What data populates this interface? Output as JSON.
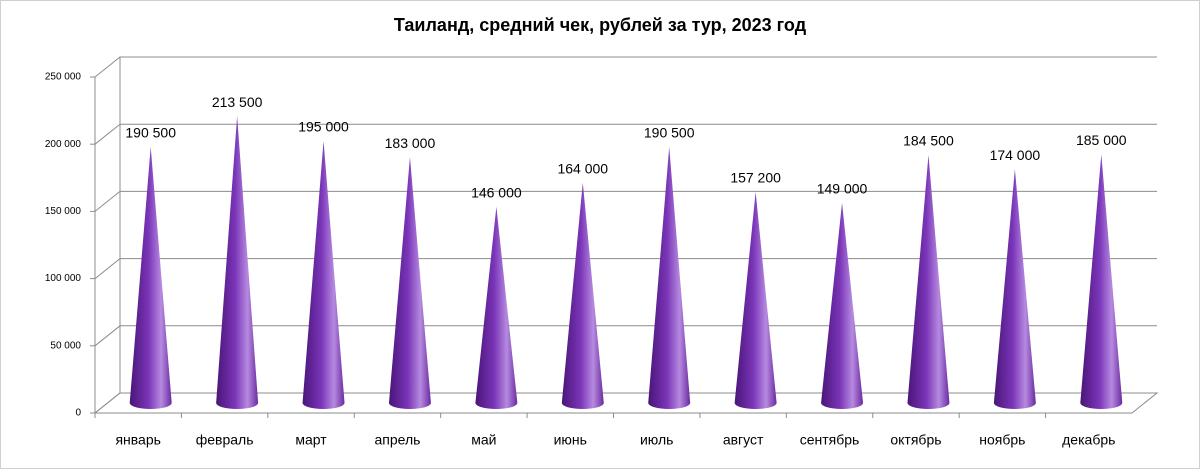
{
  "chart_data": {
    "type": "cone3d",
    "title": "Таиланд, средний чек, рублей за тур, 2023 год",
    "categories": [
      "январь",
      "февраль",
      "март",
      "апрель",
      "май",
      "июнь",
      "июль",
      "август",
      "сентябрь",
      "октябрь",
      "ноябрь",
      "декабрь"
    ],
    "values": [
      190500,
      213500,
      195000,
      183000,
      146000,
      164000,
      190500,
      157200,
      149000,
      184500,
      174000,
      185000
    ],
    "value_labels": [
      "190 500",
      "213 500",
      "195 000",
      "183 000",
      "146 000",
      "164 000",
      "190 500",
      "157 200",
      "149 000",
      "184 500",
      "174 000",
      "185 000"
    ],
    "color": "#7a35b8",
    "ylim": [
      0,
      250000
    ],
    "yticks": [
      0,
      {
        "value": 50000,
        "label": "50 000"
      },
      {
        "value": 100000,
        "label": "100 000"
      },
      {
        "value": 150000,
        "label": "150 000"
      },
      {
        "value": 200000,
        "label": "200 000"
      },
      {
        "value": 250000,
        "label": "250 000"
      }
    ],
    "grid": true
  }
}
